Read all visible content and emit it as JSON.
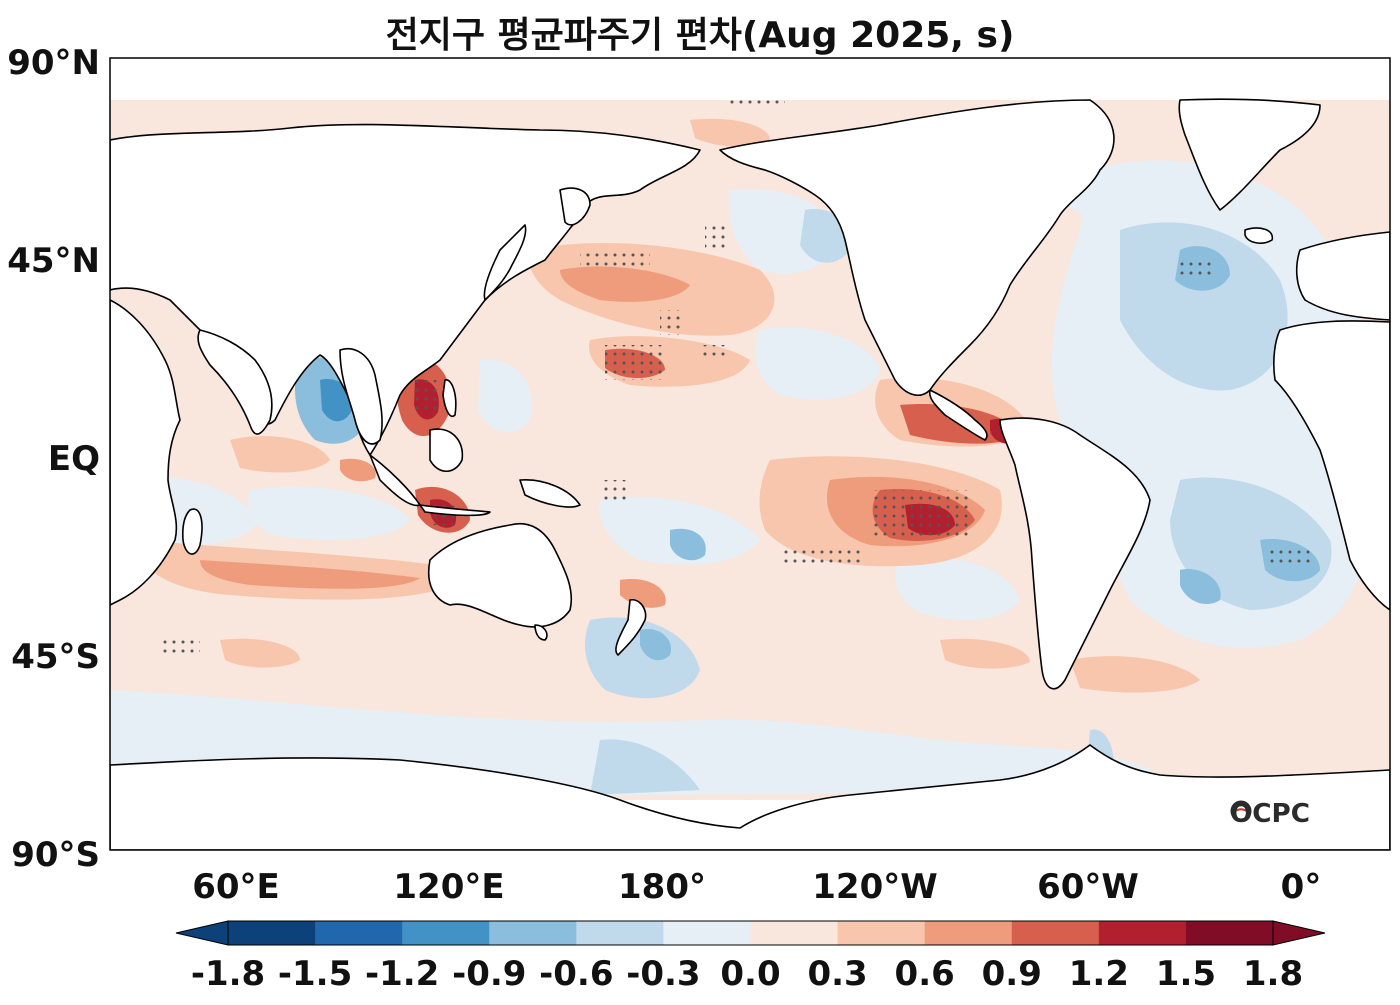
{
  "title": "전지구 평균파주기 편차(Aug 2025, s)",
  "logo": "OCPC",
  "lat_ticks": [
    "90°N",
    "45°N",
    "EQ",
    "45°S",
    "90°S"
  ],
  "lon_ticks": [
    "60°E",
    "120°E",
    "180°",
    "120°W",
    "60°W",
    "0°"
  ],
  "colorbar": {
    "ticks": [
      "-1.8",
      "-1.5",
      "-1.2",
      "-0.9",
      "-0.6",
      "-0.3",
      "0.0",
      "0.3",
      "0.6",
      "0.9",
      "1.2",
      "1.5",
      "1.8"
    ],
    "colors": [
      "#0c4179",
      "#2167ad",
      "#4292c6",
      "#8bbedc",
      "#c0daeb",
      "#e6eff6",
      "#f9e6dd",
      "#f7c6ad",
      "#ef9c7c",
      "#d6604d",
      "#b2202f",
      "#800c26"
    ],
    "extend": "both"
  },
  "palette": {
    "land": "#ffffff",
    "coast": "#000000",
    "stipple": "#555555"
  }
}
